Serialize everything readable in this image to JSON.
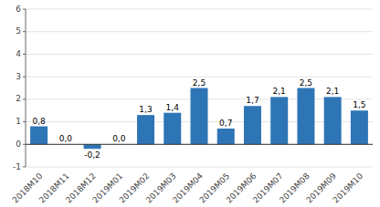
{
  "chart_data": {
    "type": "bar",
    "categories": [
      "2018M10",
      "2018M11",
      "2018M12",
      "2019M01",
      "2019M02",
      "2019M03",
      "2019M04",
      "2019M05",
      "2019M06",
      "2019M07",
      "2019M08",
      "2019M09",
      "2019M10"
    ],
    "values": [
      0.8,
      0.0,
      -0.2,
      0.0,
      1.3,
      1.4,
      2.5,
      0.7,
      1.7,
      2.1,
      2.5,
      2.1,
      1.5
    ],
    "value_labels": [
      "0,8",
      "0,0",
      "-0,2",
      "0,0",
      "1,3",
      "1,4",
      "2,5",
      "0,7",
      "1,7",
      "2,1",
      "2,5",
      "2,1",
      "1,5"
    ],
    "color": "#2E75B6",
    "ylim": [
      -1,
      6
    ],
    "yticks": [
      -1,
      0,
      1,
      2,
      3,
      4,
      5,
      6
    ],
    "grid": true,
    "data_labels": true
  }
}
